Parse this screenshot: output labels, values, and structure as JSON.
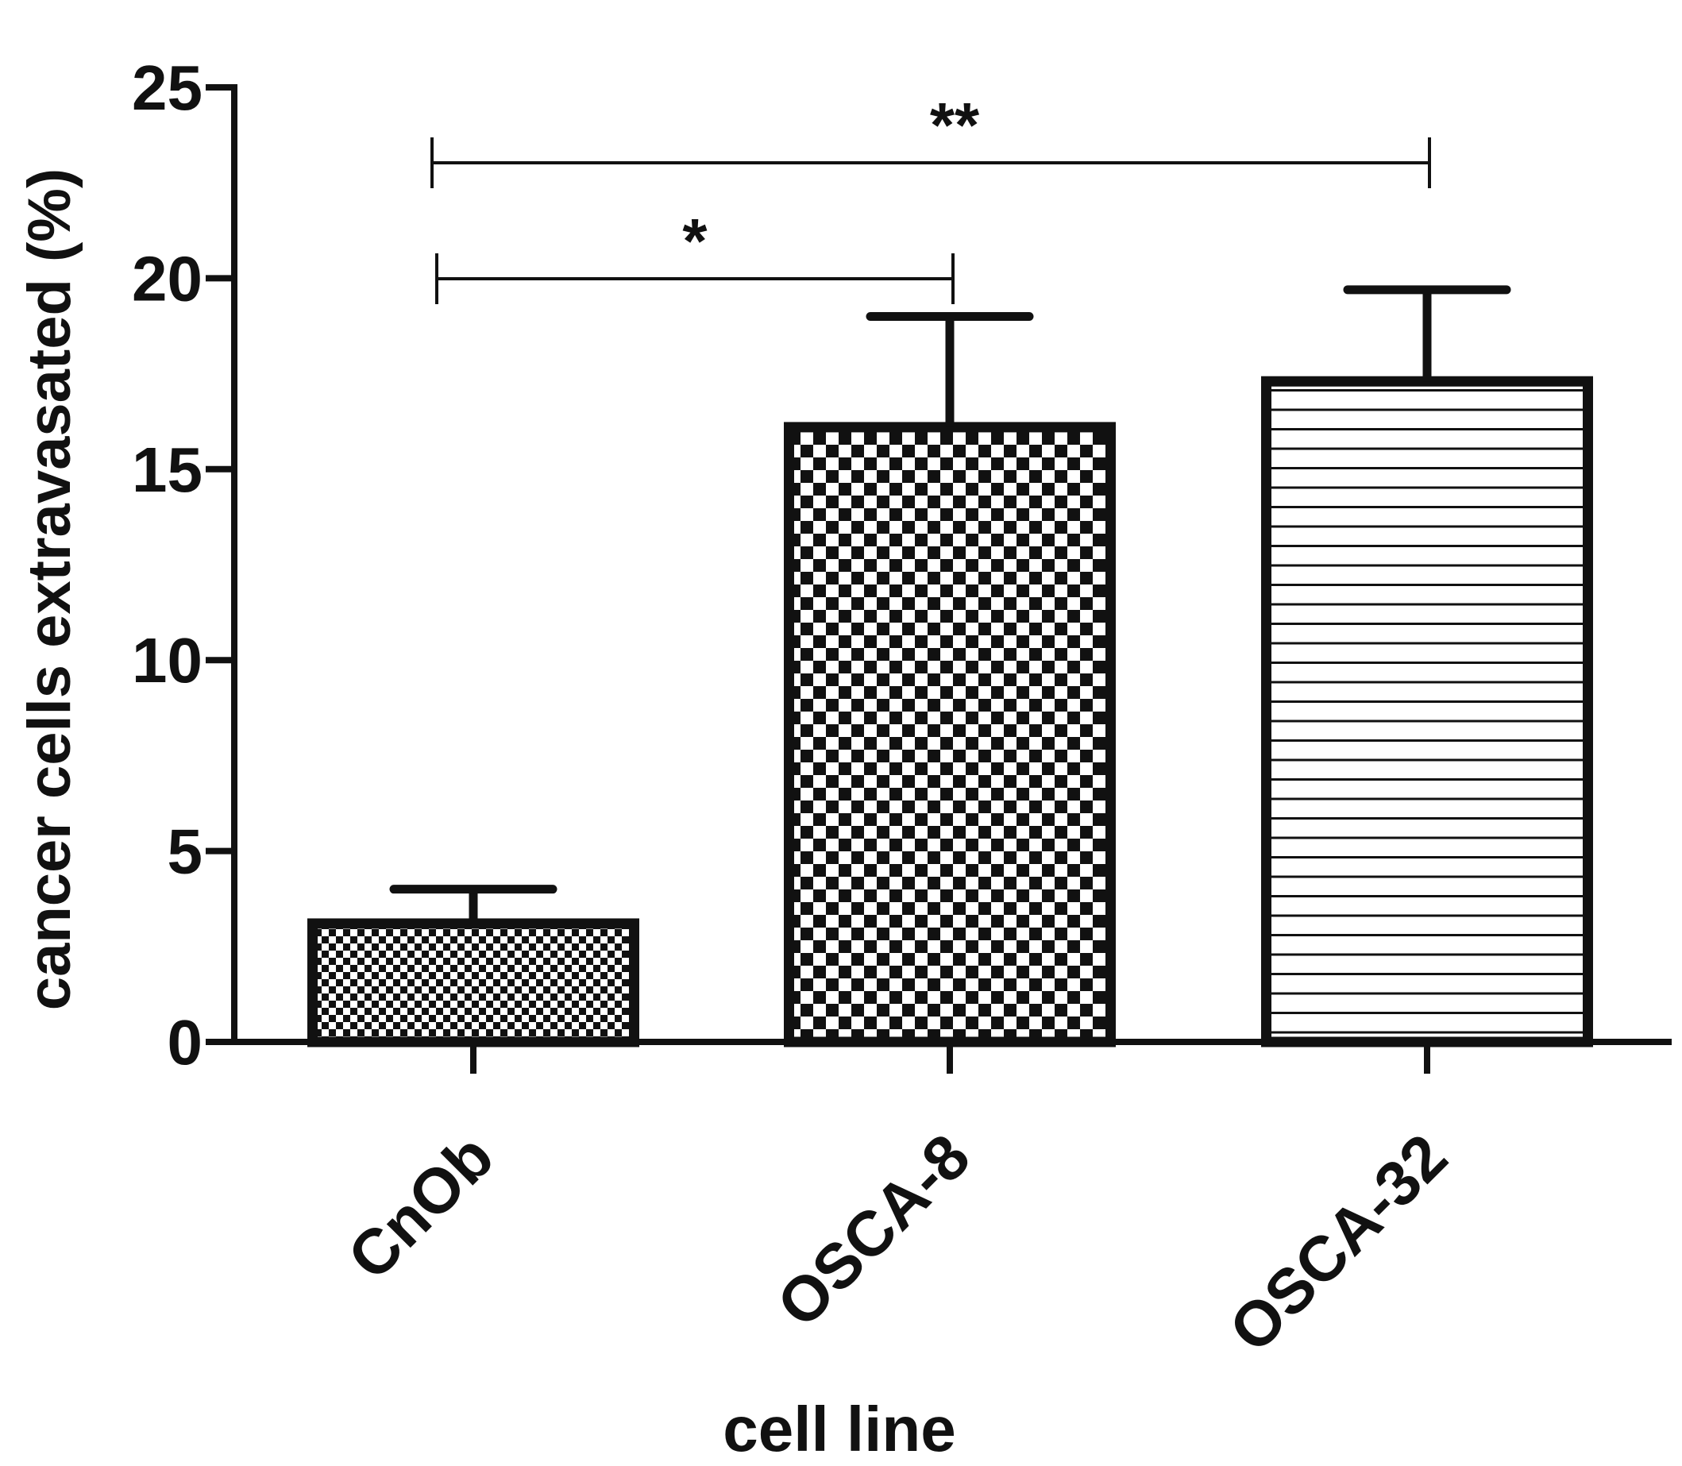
{
  "chart_data": {
    "type": "bar",
    "title": "",
    "xlabel": "cell line",
    "ylabel": "cancer cells extravasated (%)",
    "categories": [
      "CnOb",
      "OSCA-8",
      "OSCA-32"
    ],
    "values": [
      3.1,
      16.1,
      17.3
    ],
    "error_upper": [
      0.9,
      2.9,
      2.4
    ],
    "ylim": [
      0,
      25
    ],
    "yticks": [
      "0",
      "5",
      "10",
      "15",
      "20",
      "25"
    ],
    "bar_patterns": [
      "fine-checker",
      "coarse-checker",
      "horizontal-lines"
    ],
    "grid": false,
    "legend": "none",
    "significance": [
      {
        "from": 0,
        "to": 1,
        "label": "*"
      },
      {
        "from": 0,
        "to": 2,
        "label": "**"
      }
    ],
    "colors": {
      "ink": "#111111",
      "background": "#ffffff"
    }
  }
}
